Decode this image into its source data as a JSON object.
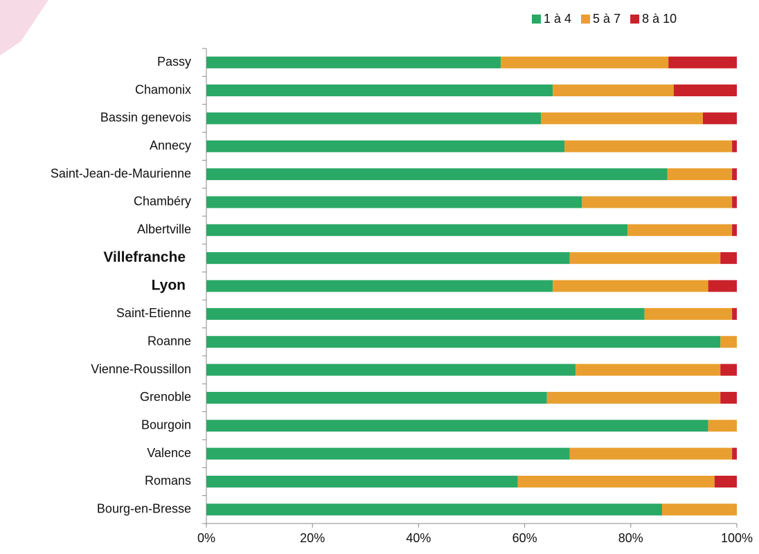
{
  "chart_data": {
    "type": "stacked-barh",
    "categories": [
      "Passy",
      "Chamonix",
      "Bassin genevois",
      "Annecy",
      "Saint-Jean-de-Maurienne",
      "Chambéry",
      "Albertville",
      "Villefranche",
      "Lyon",
      "Saint-Etienne",
      "Roanne",
      "Vienne-Roussillon",
      "Grenoble",
      "Bourgoin",
      "Valence",
      "Romans",
      "Bourg-en-Bresse"
    ],
    "category_colors": [
      "#111111",
      "#111111",
      "#111111",
      "#111111",
      "#111111",
      "#111111",
      "#111111",
      "#9b2a8a",
      "#9b2a8a",
      "#111111",
      "#111111",
      "#111111",
      "#111111",
      "#111111",
      "#111111",
      "#111111",
      "#111111"
    ],
    "series": [
      {
        "name": "1 à 4",
        "color": "#2aa866",
        "values": [
          55.5,
          65.3,
          63.1,
          67.5,
          86.9,
          70.8,
          79.4,
          68.5,
          65.3,
          82.6,
          96.9,
          69.6,
          64.2,
          94.6,
          68.5,
          58.7,
          85.9
        ]
      },
      {
        "name": "5 à 7",
        "color": "#e99f2f",
        "values": [
          31.6,
          22.8,
          30.5,
          31.6,
          12.2,
          28.3,
          19.7,
          28.4,
          29.3,
          16.5,
          3.1,
          27.3,
          32.7,
          5.4,
          30.6,
          37.1,
          14.1
        ]
      },
      {
        "name": "8 à 10",
        "color": "#c9222b",
        "values": [
          12.9,
          11.9,
          6.4,
          0.9,
          0.9,
          0.9,
          0.9,
          3.1,
          5.4,
          0.9,
          0,
          3.1,
          3.1,
          0,
          0.9,
          4.2,
          0
        ]
      }
    ],
    "xlim": [
      0,
      100
    ],
    "xticks": [
      {
        "value": 0,
        "label": "0%"
      },
      {
        "value": 20,
        "label": "20%"
      },
      {
        "value": 40,
        "label": "40%"
      },
      {
        "value": 60,
        "label": "60%"
      },
      {
        "value": 80,
        "label": "80%"
      },
      {
        "value": 100,
        "label": "100%"
      }
    ],
    "legend": "top-right"
  }
}
